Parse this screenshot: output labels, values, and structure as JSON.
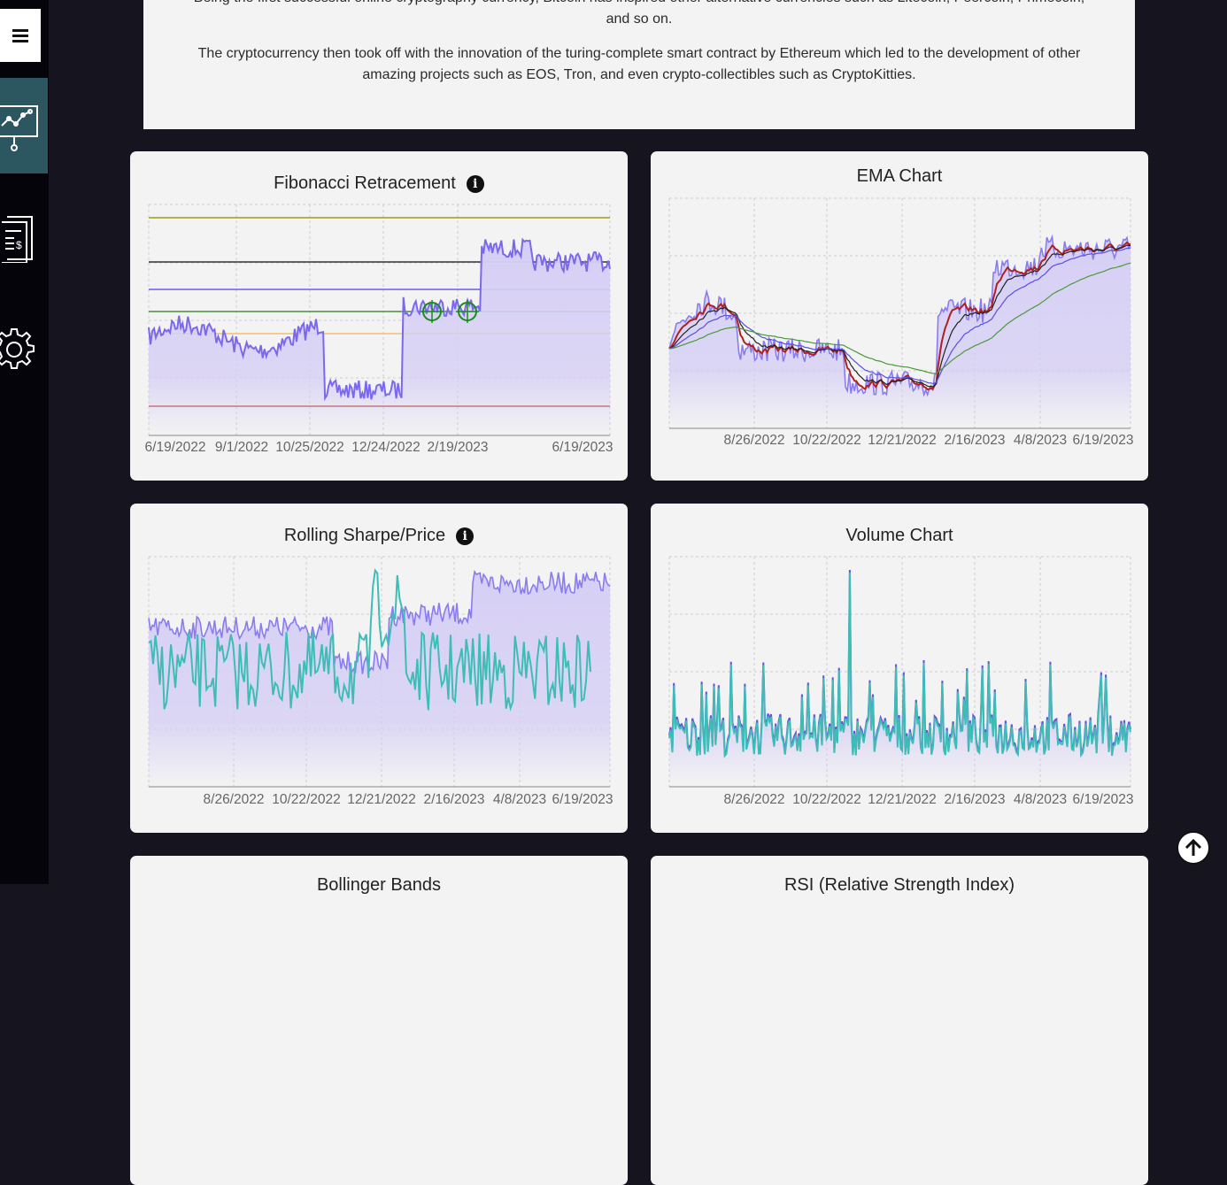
{
  "sidebar": {
    "items": [
      {
        "icon": "hamburger-menu-icon"
      },
      {
        "icon": "analytics-presentation-icon",
        "active": true
      },
      {
        "icon": "financial-report-icon"
      },
      {
        "icon": "gear-icon"
      }
    ]
  },
  "intro": {
    "paragraph1": "Being the first successful online cryptography currency, Bitcoin has inspired other alternative currencies such as Litecoin, Peercoin, Primecoin, and so on.",
    "paragraph2": "The cryptocurrency then took off with the innovation of the turing-complete smart contract by Ethereum which led to the development of other amazing projects such as EOS, Tron, and even crypto-collectibles such as CryptoKitties."
  },
  "cards": {
    "fibonacci": {
      "title": "Fibonacci Retracement",
      "info": "i"
    },
    "ema": {
      "title": "EMA Chart"
    },
    "sharpe": {
      "title": "Rolling Sharpe/Price",
      "info": "i"
    },
    "volume": {
      "title": "Volume Chart"
    },
    "bollinger": {
      "title": "Bollinger Bands"
    },
    "rsi": {
      "title": "RSI (Relative Strength Index)"
    }
  },
  "colors": {
    "accent_purple": "#7b68ee",
    "fill_purple": "#d6cff5",
    "teal": "#3dbdb6",
    "sidebar_active": "#2c5660",
    "card_bg": "#f3f3f3"
  },
  "chart_data": [
    {
      "type": "area",
      "title": "Fibonacci Retracement",
      "x_ticks": [
        "6/19/2022",
        "9/1/2022",
        "10/25/2022",
        "12/24/2022",
        "2/19/2023",
        "6/19/2023"
      ],
      "levels": [
        {
          "color": "#9b9b1a"
        },
        {
          "color": "#333333"
        },
        {
          "color": "#6b5ce7"
        },
        {
          "color": "#4a8f3a"
        },
        {
          "color": "#f0c070"
        },
        {
          "color": "#c0392b"
        }
      ],
      "markers": [
        "target-marker",
        "target-marker"
      ],
      "grid": true
    },
    {
      "type": "line",
      "title": "EMA Chart",
      "x_ticks": [
        "8/26/2022",
        "10/22/2022",
        "12/21/2022",
        "2/16/2023",
        "4/8/2023",
        "6/19/2023"
      ],
      "series_colors": [
        "#8a7cf0",
        "#b02020",
        "#222222",
        "#5a4fe0",
        "#4a9a3a"
      ],
      "grid": true
    },
    {
      "type": "area",
      "title": "Rolling Sharpe/Price",
      "x_ticks": [
        "8/26/2022",
        "10/22/2022",
        "12/21/2022",
        "2/16/2023",
        "4/8/2023",
        "6/19/2023"
      ],
      "series_colors": [
        "#8a7cf0",
        "#3dbdb6"
      ],
      "grid": true
    },
    {
      "type": "line",
      "title": "Volume Chart",
      "x_ticks": [
        "8/26/2022",
        "10/22/2022",
        "12/21/2022",
        "2/16/2023",
        "4/8/2023",
        "6/19/2023"
      ],
      "series_colors": [
        "#6b4fe0",
        "#3dbdb6"
      ],
      "grid": true
    }
  ]
}
